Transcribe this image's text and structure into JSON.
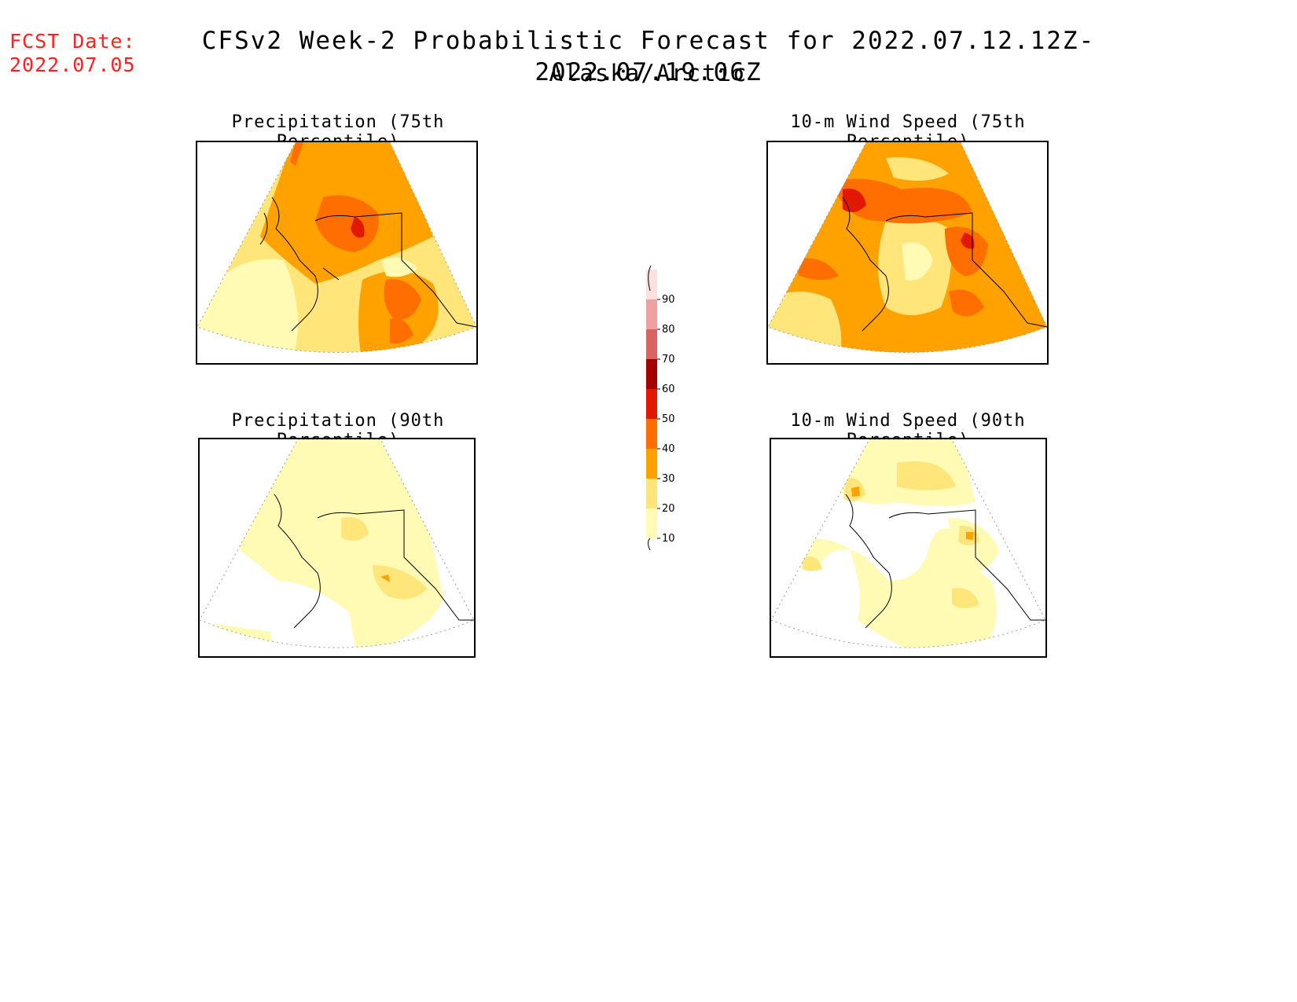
{
  "header": {
    "fcst_label": "FCST Date:",
    "fcst_date": "2022.07.05",
    "title": "CFSv2 Week-2 Probabilistic Forecast for 2022.07.12.12Z-2022.07.19.06Z",
    "subtitle": "Alaska/Arctic"
  },
  "panels": [
    {
      "title": "Precipitation (75th Percentile)"
    },
    {
      "title": "10-m Wind Speed (75th Percentile)"
    },
    {
      "title": "Precipitation (90th Percentile)"
    },
    {
      "title": "10-m Wind Speed (90th Percentile)"
    }
  ],
  "colorbar": {
    "levels": [
      "10",
      "20",
      "30",
      "40",
      "50",
      "60",
      "70",
      "80",
      "90"
    ],
    "colors": [
      "#fffab4",
      "#ffe57a",
      "#ffa200",
      "#ff6e00",
      "#e11900",
      "#a50000",
      "#d86464",
      "#f0a0a0",
      "#fde0e0"
    ]
  }
}
